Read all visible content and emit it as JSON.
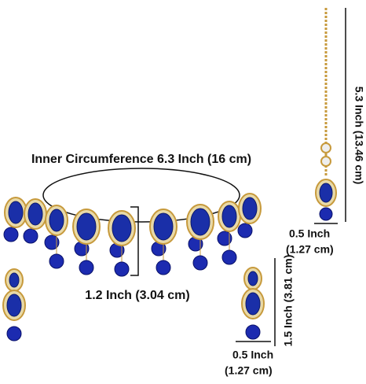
{
  "annotations": {
    "choker_circumference": "Inner Circumference 6.3 Inch (16 cm)",
    "choker_pendant_height": "1.2 Inch (3.04 cm)",
    "tikka_length": "5.3 Inch (13.46 cm)",
    "tikka_width": [
      "0.5 Inch",
      "(1.27 cm)"
    ],
    "earring_length": "1.5 Inch (3.81 cm)",
    "earring_width": [
      "0.5 Inch",
      "(1.27 cm)"
    ]
  }
}
